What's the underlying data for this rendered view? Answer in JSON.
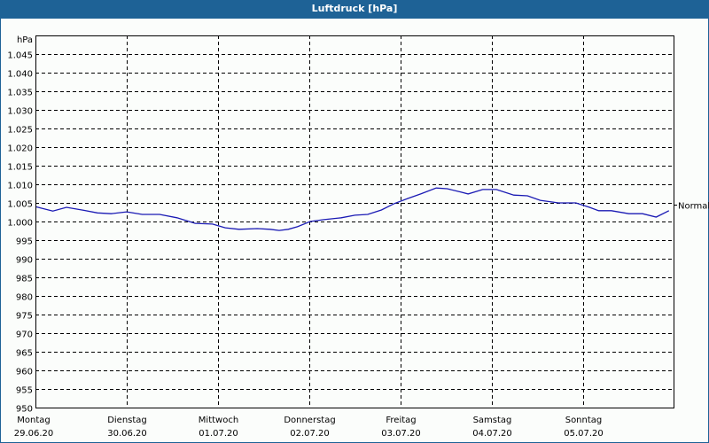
{
  "window": {
    "title": "Luftdruck [hPa]"
  },
  "chart_data": {
    "type": "line",
    "title": "Luftdruck [hPa]",
    "xlabel": "",
    "ylabel": "hPa",
    "ylim": [
      950,
      1050
    ],
    "yticks": [
      "950",
      "955",
      "960",
      "965",
      "970",
      "975",
      "980",
      "985",
      "990",
      "995",
      "1.000",
      "1.005",
      "1.010",
      "1.015",
      "1.020",
      "1.025",
      "1.030",
      "1.035",
      "1.040",
      "1.045"
    ],
    "grid": true,
    "legend": "none",
    "categories": [
      {
        "day": "Montag",
        "date": "29.06.20"
      },
      {
        "day": "Dienstag",
        "date": "30.06.20"
      },
      {
        "day": "Mittwoch",
        "date": "01.07.20"
      },
      {
        "day": "Donnerstag",
        "date": "02.07.20"
      },
      {
        "day": "Freitag",
        "date": "03.07.20"
      },
      {
        "day": "Samstag",
        "date": "04.07.20"
      },
      {
        "day": "Sonntag",
        "date": "05.07.20"
      }
    ],
    "reference_line": {
      "label": "Normal",
      "value": 1004.5
    },
    "series": [
      {
        "name": "Luftdruck",
        "color": "#1a1ab4",
        "x_days": [
          0,
          0.19,
          0.34,
          0.53,
          0.68,
          0.83,
          1.0,
          1.17,
          1.36,
          1.55,
          1.75,
          1.94,
          2.08,
          2.23,
          2.43,
          2.57,
          2.67,
          2.77,
          2.87,
          3.01,
          3.16,
          3.35,
          3.5,
          3.64,
          3.79,
          3.93,
          4.08,
          4.22,
          4.39,
          4.51,
          4.66,
          4.74,
          4.9,
          5.05,
          5.24,
          5.39,
          5.53,
          5.73,
          5.92,
          6.07,
          6.17,
          6.31,
          6.5,
          6.65,
          6.8,
          6.94
        ],
        "values": [
          1004.0,
          1002.8,
          1003.8,
          1003.0,
          1002.3,
          1002.1,
          1002.6,
          1001.9,
          1001.9,
          1001.0,
          999.5,
          999.3,
          998.3,
          997.9,
          998.1,
          997.9,
          997.6,
          997.9,
          998.6,
          1000.0,
          1000.5,
          1001.0,
          1001.7,
          1001.9,
          1003.1,
          1004.8,
          1006.2,
          1007.4,
          1009.0,
          1008.8,
          1007.9,
          1007.4,
          1008.6,
          1008.6,
          1007.1,
          1006.9,
          1005.7,
          1005.0,
          1005.0,
          1003.8,
          1002.9,
          1002.9,
          1002.1,
          1002.1,
          1001.2,
          1002.9
        ]
      }
    ]
  }
}
